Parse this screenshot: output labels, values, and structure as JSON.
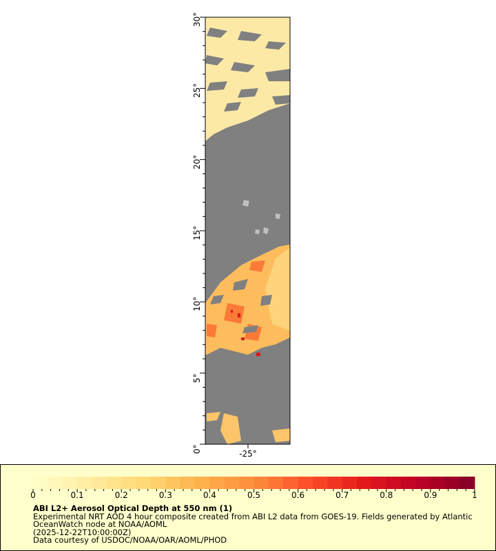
{
  "map": {
    "lat_range": [
      0,
      30
    ],
    "lat_labels": [
      "0°",
      "5°",
      "10°",
      "15°",
      "20°",
      "25°",
      "30°"
    ],
    "lon_labels": [
      "-25°"
    ],
    "land_nodata_color": "#808080",
    "mask_color": "#c0c0c0"
  },
  "legend": {
    "colorbar_range": [
      0,
      1
    ],
    "colorbar_labels": [
      "0",
      "0.1",
      "0.2",
      "0.3",
      "0.4",
      "0.5",
      "0.6",
      "0.7",
      "0.8",
      "0.9",
      "1"
    ],
    "colorbar_colors": [
      "#ffffcc",
      "#ffeda0",
      "#fed976",
      "#feb24c",
      "#fd8d3c",
      "#fc4e2a",
      "#e31a1c",
      "#bd0026",
      "#800026"
    ],
    "title": "ABI L2+ Aerosol Optical Depth at 550 nm (1)",
    "line1": "Experimental NRT AOD 4 hour composite created from ABI L2 data from GOES-19. Fields generated by Atlantic",
    "line2": "OceanWatch node at NOAA/AOML",
    "line3": "(2025-12-22T10:00:00Z)",
    "line4": "Data courtesy of USDOC/NOAA/OAR/AOML/PHOD"
  }
}
